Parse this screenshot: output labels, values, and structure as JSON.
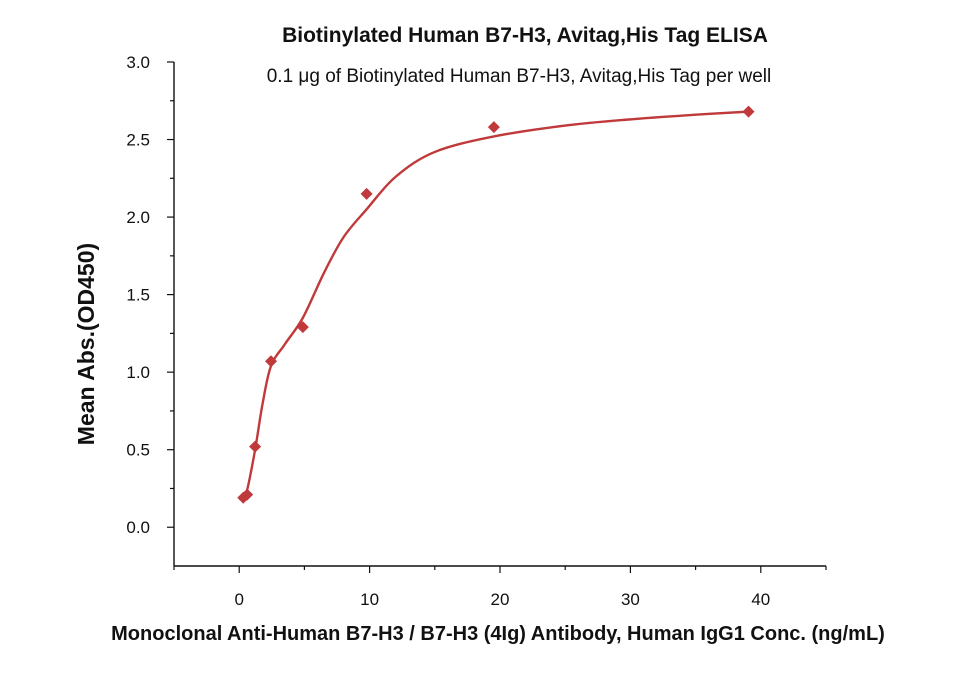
{
  "chart_data": {
    "type": "scatter",
    "title": "Biotinylated Human B7-H3, Avitag,His Tag ELISA",
    "subtitle": "0.1 μg of Biotinylated Human B7-H3, Avitag,His Tag per well",
    "xlabel": "Monoclonal Anti-Human B7-H3 / B7-H3 (4Ig) Antibody, Human IgG1 Conc. (ng/mL)",
    "ylabel": "Mean Abs.(OD450)",
    "xlim": [
      -5,
      45
    ],
    "ylim": [
      -0.25,
      3.0
    ],
    "x_ticks": [
      0,
      10,
      20,
      30,
      40
    ],
    "x_tick_labels": [
      "0",
      "10",
      "20",
      "30",
      "40"
    ],
    "y_ticks": [
      0.0,
      0.5,
      1.0,
      1.5,
      2.0,
      2.5,
      3.0
    ],
    "y_tick_labels": [
      "0.0",
      "0.5",
      "1.0",
      "1.5",
      "2.0",
      "2.5",
      "3.0"
    ],
    "grid": false,
    "color": "#c0393b",
    "series": [
      {
        "marker": "diamond",
        "x": [
          0.31,
          0.61,
          1.22,
          2.44,
          4.88,
          9.77,
          19.53,
          39.06
        ],
        "y": [
          0.19,
          0.21,
          0.52,
          1.07,
          1.29,
          2.15,
          2.58,
          2.68
        ]
      }
    ],
    "fit_curve": {
      "x": [
        0.31,
        0.61,
        1.22,
        1.8,
        2.44,
        3.5,
        4.88,
        6.5,
        8.0,
        9.77,
        12.0,
        15.0,
        19.53,
        25.0,
        30.0,
        35.0,
        39.06
      ],
      "y": [
        0.18,
        0.24,
        0.5,
        0.8,
        1.04,
        1.18,
        1.35,
        1.64,
        1.87,
        2.05,
        2.26,
        2.42,
        2.52,
        2.59,
        2.63,
        2.66,
        2.68
      ]
    }
  }
}
